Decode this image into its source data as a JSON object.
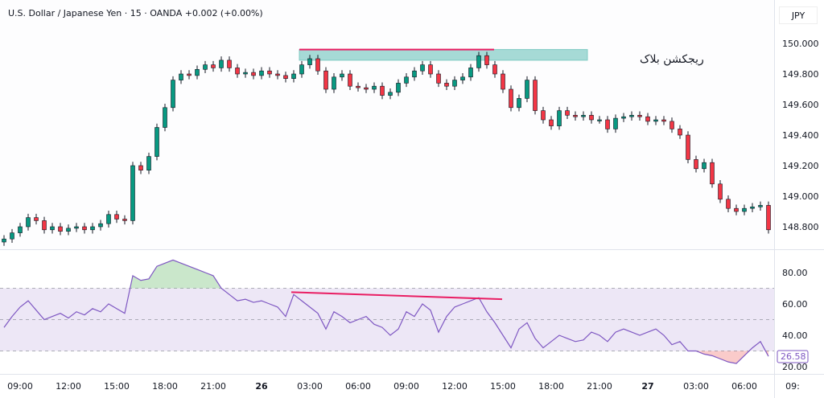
{
  "header": {
    "title": "U.S. Dollar / Japanese Yen · 15 · OANDA  +0.002 (+0.00%)",
    "currency": "JPY"
  },
  "colors": {
    "up": "#089981",
    "down": "#f23645",
    "wick": "#131722",
    "rsi": "#7e57c2",
    "band": "#ede7f6",
    "zone": "#80cbc4",
    "pink": "#e91e63"
  },
  "price_axis": [
    "150.000",
    "149.800",
    "149.600",
    "149.400",
    "149.200",
    "149.000",
    "148.800"
  ],
  "rsi_axis": [
    "80.00",
    "60.00",
    "40.00",
    "20.00"
  ],
  "rsi_last": "26.58",
  "time_axis": [
    "09:00",
    "12:00",
    "15:00",
    "18:00",
    "21:00",
    "26",
    "03:00",
    "06:00",
    "09:00",
    "12:00",
    "15:00",
    "18:00",
    "21:00",
    "27",
    "03:00",
    "06:00",
    "09:"
  ],
  "annotation": {
    "label": "ریجکشن بلاک",
    "zone_top": 149.96,
    "zone_bottom": 149.89
  },
  "chart_data": {
    "type": "candlestick",
    "interval": "30m",
    "first_bar": "25 08:00",
    "close": [
      148.72,
      148.76,
      148.8,
      148.86,
      148.84,
      148.78,
      148.8,
      148.77,
      148.79,
      148.8,
      148.78,
      148.8,
      148.82,
      148.88,
      148.85,
      148.84,
      149.2,
      149.17,
      149.26,
      149.45,
      149.58,
      149.76,
      149.8,
      149.79,
      149.83,
      149.86,
      149.84,
      149.89,
      149.84,
      149.8,
      149.81,
      149.79,
      149.82,
      149.8,
      149.79,
      149.77,
      149.8,
      149.86,
      149.9,
      149.82,
      149.7,
      149.78,
      149.8,
      149.72,
      149.71,
      149.7,
      149.72,
      149.66,
      149.68,
      149.74,
      149.78,
      149.82,
      149.86,
      149.8,
      149.74,
      149.72,
      149.76,
      149.78,
      149.84,
      149.92,
      149.86,
      149.8,
      149.7,
      149.58,
      149.64,
      149.76,
      149.56,
      149.5,
      149.46,
      149.56,
      149.53,
      149.52,
      149.53,
      149.5,
      149.5,
      149.44,
      149.51,
      149.52,
      149.53,
      149.52,
      149.49,
      149.5,
      149.49,
      149.44,
      149.4,
      149.24,
      149.18,
      149.22,
      149.08,
      148.98,
      148.92,
      148.9,
      148.92,
      148.93,
      148.94,
      148.78
    ],
    "rsi": [
      45,
      52,
      58,
      62,
      56,
      50,
      52,
      54,
      51,
      55,
      53,
      57,
      55,
      60,
      57,
      54,
      78,
      75,
      76,
      84,
      86,
      88,
      86,
      84,
      82,
      80,
      78,
      70,
      66,
      62,
      63,
      61,
      62,
      60,
      58,
      52,
      66,
      62,
      58,
      54,
      44,
      55,
      52,
      48,
      50,
      52,
      47,
      45,
      40,
      44,
      55,
      52,
      60,
      56,
      42,
      52,
      58,
      60,
      62,
      64,
      55,
      48,
      40,
      32,
      44,
      48,
      38,
      32,
      36,
      40,
      38,
      36,
      37,
      42,
      40,
      36,
      42,
      44,
      42,
      40,
      42,
      44,
      40,
      34,
      36,
      30,
      30,
      28,
      27,
      25,
      23,
      22,
      27,
      32,
      36,
      26.58
    ],
    "rsi_levels": [
      70,
      50,
      30
    ]
  }
}
